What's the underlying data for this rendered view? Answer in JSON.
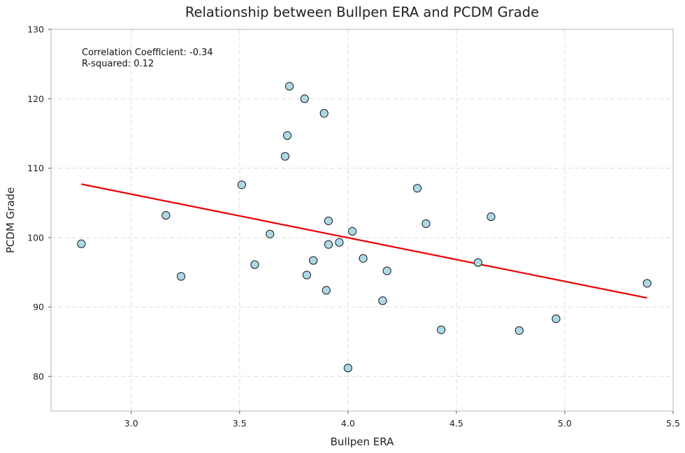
{
  "chart_data": {
    "type": "scatter",
    "title": "Relationship between Bullpen ERA and PCDM Grade",
    "xlabel": "Bullpen ERA",
    "ylabel": "PCDM Grade",
    "xlim": [
      2.63,
      5.5
    ],
    "ylim": [
      75,
      130
    ],
    "xticks": [
      3.0,
      3.5,
      4.0,
      4.5,
      5.0,
      5.5
    ],
    "xtick_labels": [
      "3.0",
      "3.5",
      "4.0",
      "4.5",
      "5.0",
      "5.5"
    ],
    "yticks": [
      80,
      90,
      100,
      110,
      120,
      130
    ],
    "ytick_labels": [
      "80",
      "90",
      "100",
      "110",
      "120",
      "130"
    ],
    "grid": true,
    "annotations": [
      "Correlation Coefficient: -0.34",
      "R-squared: 0.12"
    ],
    "points": [
      {
        "x": 2.77,
        "y": 99.1
      },
      {
        "x": 3.16,
        "y": 103.2
      },
      {
        "x": 3.23,
        "y": 94.4
      },
      {
        "x": 3.51,
        "y": 107.6
      },
      {
        "x": 3.57,
        "y": 96.1
      },
      {
        "x": 3.64,
        "y": 100.5
      },
      {
        "x": 3.71,
        "y": 111.7
      },
      {
        "x": 3.72,
        "y": 114.7
      },
      {
        "x": 3.73,
        "y": 121.8
      },
      {
        "x": 3.8,
        "y": 120.0
      },
      {
        "x": 3.81,
        "y": 94.6
      },
      {
        "x": 3.84,
        "y": 96.7
      },
      {
        "x": 3.89,
        "y": 117.9
      },
      {
        "x": 3.9,
        "y": 92.4
      },
      {
        "x": 3.91,
        "y": 102.4
      },
      {
        "x": 3.91,
        "y": 99.0
      },
      {
        "x": 3.96,
        "y": 99.3
      },
      {
        "x": 4.0,
        "y": 81.2
      },
      {
        "x": 4.02,
        "y": 100.9
      },
      {
        "x": 4.07,
        "y": 97.0
      },
      {
        "x": 4.16,
        "y": 90.9
      },
      {
        "x": 4.18,
        "y": 95.2
      },
      {
        "x": 4.32,
        "y": 107.1
      },
      {
        "x": 4.36,
        "y": 102.0
      },
      {
        "x": 4.43,
        "y": 86.7
      },
      {
        "x": 4.6,
        "y": 96.4
      },
      {
        "x": 4.66,
        "y": 103.0
      },
      {
        "x": 4.79,
        "y": 86.6
      },
      {
        "x": 4.96,
        "y": 88.3
      },
      {
        "x": 5.38,
        "y": 93.4
      }
    ],
    "trend_line": {
      "x": [
        2.77,
        5.38
      ],
      "y": [
        107.7,
        91.3
      ],
      "color": "#ee0000"
    },
    "marker_color": "#add8e6",
    "marker_edge_color": "#1a1a1a"
  }
}
